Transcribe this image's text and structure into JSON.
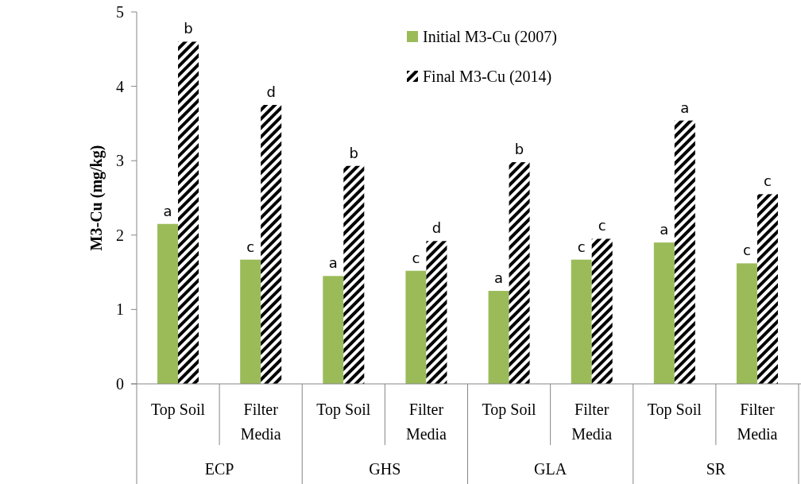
{
  "chart_data": {
    "type": "bar",
    "ylabel": "M3-Cu (mg/kg)",
    "categories": [
      "Top Soil",
      "Filter Media",
      "Top Soil",
      "Filter Media",
      "Top Soil",
      "Filter Media",
      "Top Soil",
      "Filter Media"
    ],
    "series": [
      {
        "name": "Initial M3-Cu (2007)",
        "color": "#9bbb59",
        "values": [
          2.15,
          1.67,
          1.45,
          1.52,
          1.25,
          1.67,
          1.9,
          1.62
        ],
        "value_labels": [
          "a",
          "c",
          "a",
          "c",
          "a",
          "c",
          "a",
          "c"
        ]
      },
      {
        "name": "Final M3-Cu (2014)",
        "color": "#000000",
        "values": [
          4.6,
          3.75,
          2.93,
          1.92,
          2.98,
          1.95,
          3.54,
          2.55
        ],
        "value_labels": [
          "b",
          "d",
          "b",
          "d",
          "b",
          "c",
          "a",
          "c"
        ]
      }
    ],
    "annotations": [
      "ECP",
      "GHS",
      "GLA",
      "SR"
    ],
    "ylim": [
      0,
      5
    ],
    "yticks": [
      0,
      1,
      2,
      3,
      4,
      5
    ],
    "grid": false,
    "legend": "top right"
  }
}
